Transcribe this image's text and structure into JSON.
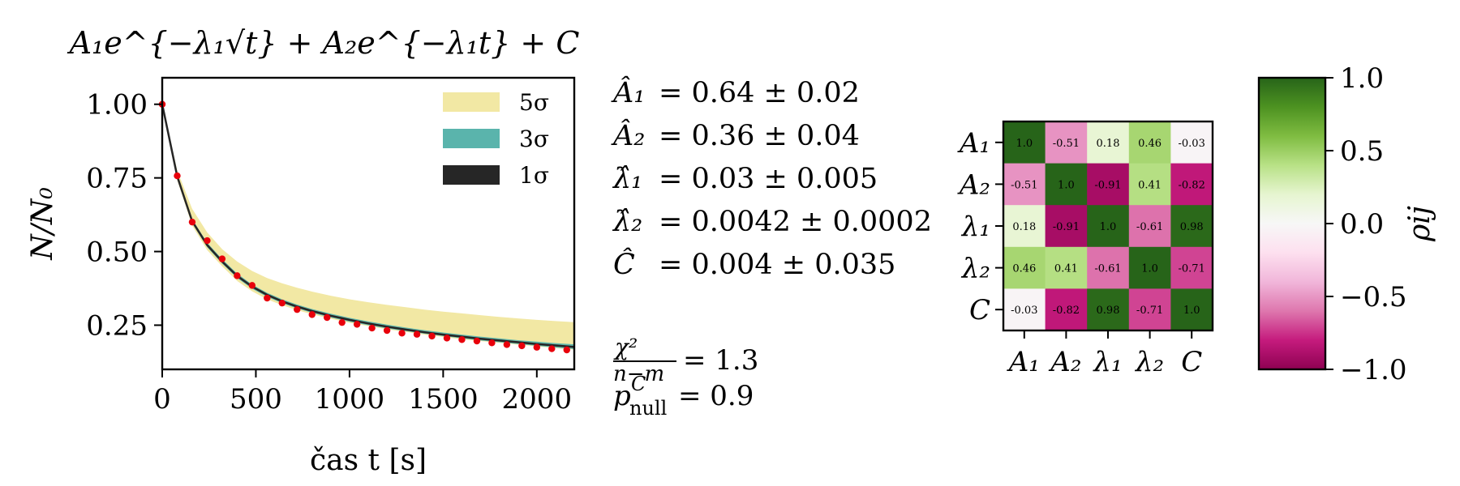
{
  "chart_data": [
    {
      "type": "line",
      "title": "A₁e^{−λ₁√t} + A₂e^{−λ₁t} + C",
      "xlabel": "čas t [s]",
      "ylabel": "N/N₀",
      "xlim": [
        0,
        2200
      ],
      "ylim": [
        0.1,
        1.09
      ],
      "xticks": [
        0,
        500,
        1000,
        1500,
        2000
      ],
      "xtick_labels": [
        "0",
        "500",
        "1000",
        "1500",
        "2000"
      ],
      "yticks": [
        0.25,
        0.5,
        0.75,
        1.0
      ],
      "ytick_labels": [
        "0.25",
        "0.50",
        "0.75",
        "1.00"
      ],
      "grid": false,
      "legend_position": "top-right",
      "legend": [
        {
          "label": "5σ",
          "color": "#f2e8a4"
        },
        {
          "label": "3σ",
          "color": "#5ab4ac"
        },
        {
          "label": "1σ",
          "color": "#262626"
        }
      ],
      "band_x": [
        0,
        80,
        160,
        240,
        320,
        400,
        480,
        560,
        640,
        720,
        800,
        900,
        1000,
        1100,
        1200,
        1300,
        1400,
        1500,
        1600,
        1700,
        1800,
        1900,
        2000,
        2100,
        2200
      ],
      "band_5s_top": [
        1.0,
        0.775,
        0.645,
        0.565,
        0.508,
        0.466,
        0.434,
        0.41,
        0.392,
        0.377,
        0.364,
        0.35,
        0.338,
        0.328,
        0.319,
        0.311,
        0.303,
        0.296,
        0.29,
        0.284,
        0.278,
        0.273,
        0.268,
        0.264,
        0.26
      ],
      "band_5s_bot": [
        1.0,
        0.742,
        0.588,
        0.505,
        0.45,
        0.4,
        0.365,
        0.338,
        0.318,
        0.301,
        0.287,
        0.272,
        0.258,
        0.247,
        0.236,
        0.227,
        0.218,
        0.21,
        0.202,
        0.196,
        0.19,
        0.184,
        0.178,
        0.172,
        0.167
      ],
      "band_3s_top": [
        1.0,
        0.762,
        0.61,
        0.53,
        0.474,
        0.425,
        0.388,
        0.36,
        0.338,
        0.32,
        0.305,
        0.289,
        0.275,
        0.263,
        0.252,
        0.242,
        0.233,
        0.225,
        0.218,
        0.211,
        0.205,
        0.199,
        0.194,
        0.189,
        0.185
      ],
      "band_3s_bot": [
        1.0,
        0.748,
        0.596,
        0.515,
        0.459,
        0.41,
        0.374,
        0.346,
        0.325,
        0.307,
        0.292,
        0.276,
        0.262,
        0.25,
        0.239,
        0.23,
        0.221,
        0.213,
        0.205,
        0.198,
        0.192,
        0.186,
        0.18,
        0.174,
        0.169
      ],
      "fit_x": [
        0,
        80,
        160,
        240,
        320,
        400,
        480,
        560,
        640,
        720,
        800,
        900,
        1000,
        1100,
        1200,
        1300,
        1400,
        1500,
        1600,
        1700,
        1800,
        1900,
        2000,
        2100,
        2200
      ],
      "fit_y": [
        1.0,
        0.755,
        0.603,
        0.522,
        0.466,
        0.417,
        0.381,
        0.353,
        0.331,
        0.313,
        0.298,
        0.282,
        0.268,
        0.256,
        0.245,
        0.235,
        0.226,
        0.218,
        0.211,
        0.204,
        0.198,
        0.192,
        0.186,
        0.181,
        0.176
      ],
      "series": [
        {
          "x": [
            0,
            80,
            160,
            240,
            320,
            400,
            480,
            560,
            640,
            720,
            800,
            880,
            960,
            1040,
            1120,
            1200,
            1280,
            1360,
            1440,
            1520,
            1600,
            1680,
            1760,
            1840,
            1920,
            2000,
            2080,
            2160
          ],
          "y": [
            1.0,
            0.757,
            0.6,
            0.537,
            0.475,
            0.418,
            0.385,
            0.342,
            0.325,
            0.303,
            0.286,
            0.276,
            0.259,
            0.253,
            0.24,
            0.232,
            0.223,
            0.219,
            0.213,
            0.206,
            0.201,
            0.196,
            0.19,
            0.184,
            0.18,
            0.175,
            0.17,
            0.166
          ],
          "color": "#e8000b"
        }
      ]
    },
    {
      "type": "heatmap",
      "row_labels": [
        "A₁",
        "A₂",
        "λ₁",
        "λ₂",
        "C"
      ],
      "col_labels": [
        "A₁",
        "A₂",
        "λ₁",
        "λ₂",
        "C"
      ],
      "values": [
        [
          1.0,
          -0.51,
          0.18,
          0.46,
          -0.03
        ],
        [
          -0.51,
          1.0,
          -0.91,
          0.41,
          -0.82
        ],
        [
          0.18,
          -0.91,
          1.0,
          -0.61,
          0.98
        ],
        [
          0.46,
          0.41,
          -0.61,
          1.0,
          -0.71
        ],
        [
          -0.03,
          -0.82,
          0.98,
          -0.71,
          1.0
        ]
      ],
      "cell_labels": [
        [
          "1.0",
          "-0.51",
          "0.18",
          "0.46",
          "-0.03"
        ],
        [
          "-0.51",
          "1.0",
          "-0.91",
          "0.41",
          "-0.82"
        ],
        [
          "0.18",
          "-0.91",
          "1.0",
          "-0.61",
          "0.98"
        ],
        [
          "0.46",
          "0.41",
          "-0.61",
          "1.0",
          "-0.71"
        ],
        [
          "-0.03",
          "-0.82",
          "0.98",
          "-0.71",
          "1.0"
        ]
      ],
      "colormap": "PiYG",
      "vmin": -1.0,
      "vmax": 1.0,
      "colorbar_label": "ρij",
      "colorbar_ticks": [
        1.0,
        0.5,
        0.0,
        -0.5,
        -1.0
      ],
      "colorbar_tick_labels": [
        "1.0",
        "0.5",
        "0.0",
        "−0.5",
        "−1.0"
      ]
    }
  ],
  "fit_results": [
    {
      "symbol": "Â₁",
      "value": "= 0.64 ± 0.02"
    },
    {
      "symbol": "Â₂",
      "value": "= 0.36 ± 0.04"
    },
    {
      "symbol": "λ̂₁",
      "value": "= 0.03 ± 0.005"
    },
    {
      "symbol": "λ̂₂",
      "value": "= 0.0042 ± 0.0002"
    },
    {
      "symbol": "Ĉ",
      "value": "= 0.004 ± 0.035"
    }
  ],
  "stats": {
    "chi_num": "χ²",
    "chi_den": "n−m",
    "chi_value": "= 1.3",
    "p_label": "p",
    "p_sup": "C",
    "p_sub": "null",
    "p_value": "= 0.9"
  }
}
